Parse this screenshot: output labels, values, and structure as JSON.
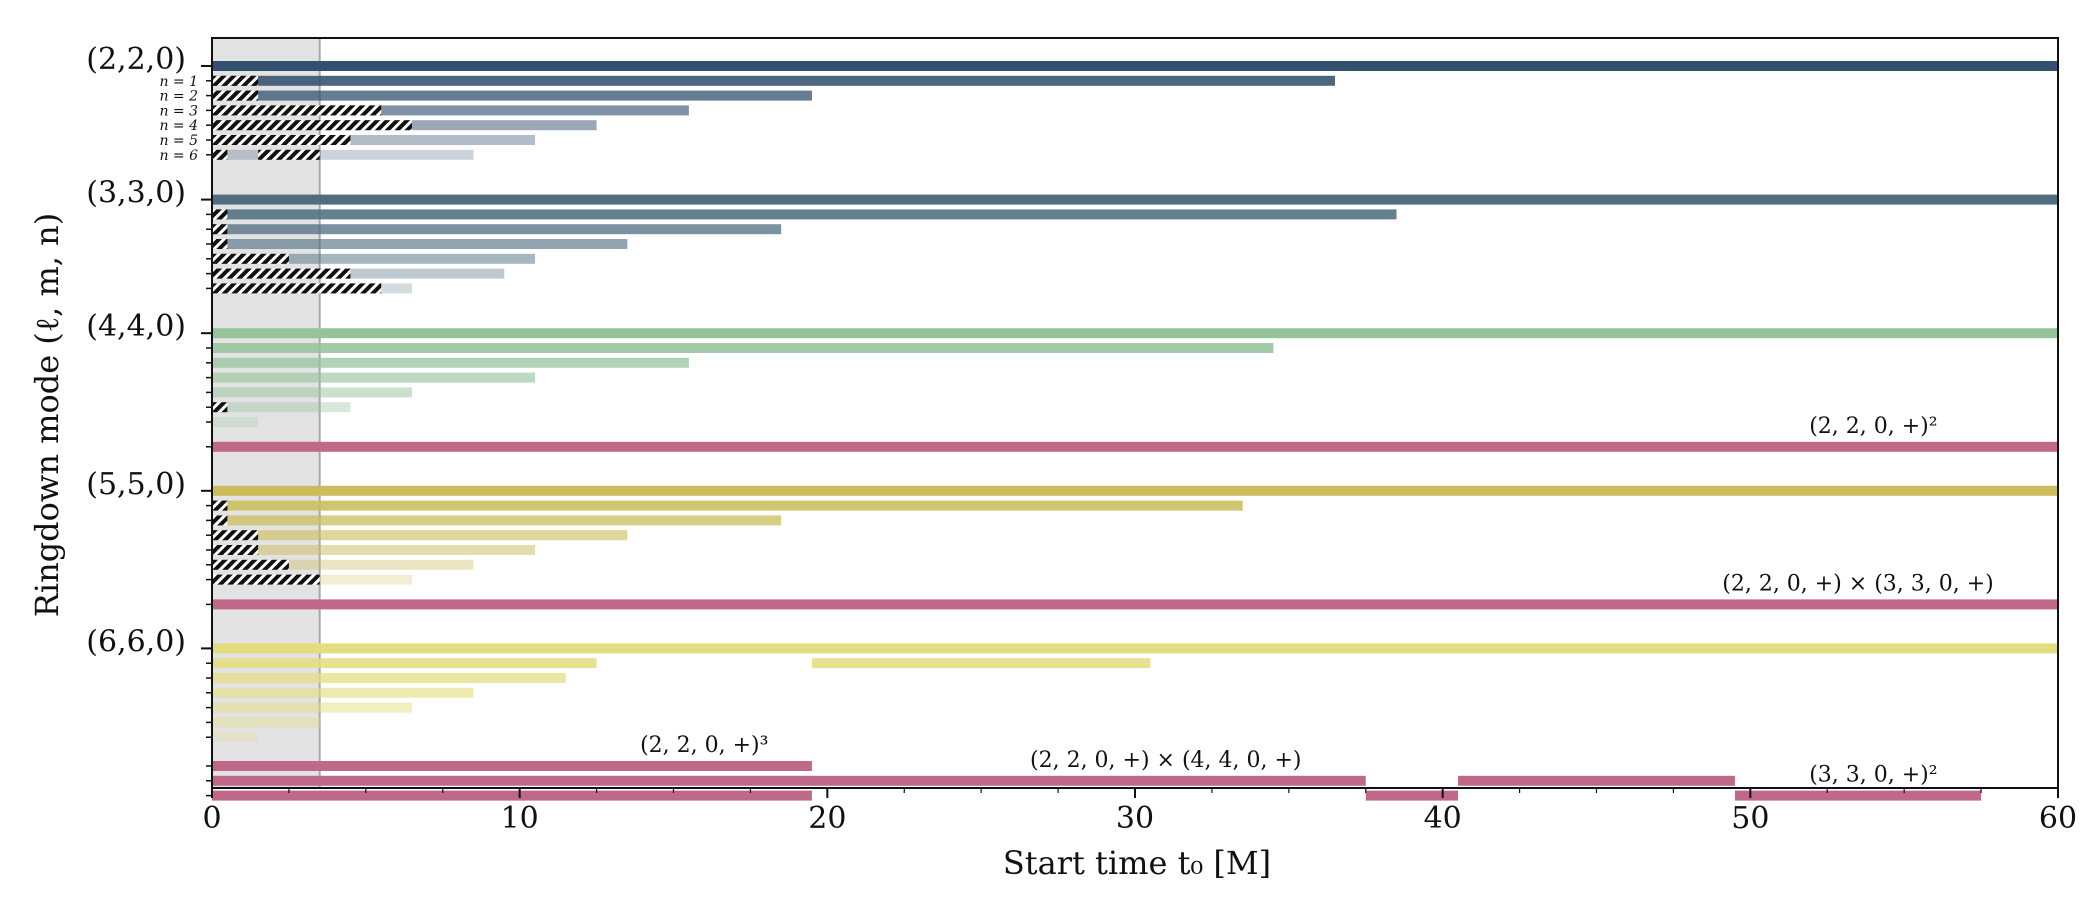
{
  "chart_data": {
    "type": "bar",
    "orientation": "horizontal",
    "xlabel": "Start time t₀ [M]",
    "ylabel": "Ringdown mode (ℓ, m, n)",
    "xlim": [
      0,
      60
    ],
    "x_ticks": [
      0,
      10,
      20,
      30,
      40,
      50,
      60
    ],
    "shaded_region": [
      0,
      3.5
    ],
    "groups": [
      {
        "label": "(2,2,0)",
        "color": "#33506e",
        "bars": [
          {
            "segments": [
              [
                0,
                60
              ]
            ],
            "hatch": []
          },
          {
            "n_label": "n = 1",
            "segments": [
              [
                0,
                36.5
              ]
            ],
            "hatch": [
              [
                0,
                1.5
              ]
            ]
          },
          {
            "n_label": "n = 2",
            "segments": [
              [
                0,
                19.5
              ]
            ],
            "hatch": [
              [
                0,
                1.5
              ]
            ]
          },
          {
            "n_label": "n = 3",
            "segments": [
              [
                0,
                15.5
              ]
            ],
            "hatch": [
              [
                0,
                5.5
              ]
            ]
          },
          {
            "n_label": "n = 4",
            "segments": [
              [
                0,
                12.5
              ]
            ],
            "hatch": [
              [
                0,
                6.5
              ]
            ]
          },
          {
            "n_label": "n = 5",
            "segments": [
              [
                0,
                10.5
              ]
            ],
            "hatch": [
              [
                0,
                4.5
              ]
            ]
          },
          {
            "n_label": "n = 6",
            "segments": [
              [
                0,
                8.5
              ]
            ],
            "hatch": [
              [
                0,
                0.5
              ],
              [
                1.5,
                3.5
              ]
            ]
          }
        ]
      },
      {
        "label": "(3,3,0)",
        "color": "#4f6f80",
        "bars": [
          {
            "segments": [
              [
                0,
                60
              ]
            ],
            "hatch": []
          },
          {
            "segments": [
              [
                0,
                38.5
              ]
            ],
            "hatch": [
              [
                0,
                0.5
              ]
            ]
          },
          {
            "segments": [
              [
                0,
                18.5
              ]
            ],
            "hatch": [
              [
                0,
                0.5
              ]
            ]
          },
          {
            "segments": [
              [
                0,
                13.5
              ]
            ],
            "hatch": [
              [
                0,
                0.5
              ]
            ]
          },
          {
            "segments": [
              [
                0,
                10.5
              ]
            ],
            "hatch": [
              [
                0,
                2.5
              ]
            ]
          },
          {
            "segments": [
              [
                0,
                9.5
              ]
            ],
            "hatch": [
              [
                0,
                4.5
              ]
            ]
          },
          {
            "segments": [
              [
                0,
                6.5
              ]
            ],
            "hatch": [
              [
                0,
                5.5
              ]
            ]
          }
        ]
      },
      {
        "label": "(4,4,0)",
        "color": "#95c49c",
        "bars": [
          {
            "segments": [
              [
                0,
                60
              ]
            ],
            "hatch": []
          },
          {
            "segments": [
              [
                0,
                34.5
              ]
            ],
            "hatch": []
          },
          {
            "segments": [
              [
                0,
                15.5
              ]
            ],
            "hatch": []
          },
          {
            "segments": [
              [
                0,
                10.5
              ]
            ],
            "hatch": []
          },
          {
            "segments": [
              [
                0,
                6.5
              ]
            ],
            "hatch": []
          },
          {
            "segments": [
              [
                0,
                4.5
              ]
            ],
            "hatch": [
              [
                0,
                0.5
              ]
            ]
          },
          {
            "segments": [
              [
                0,
                1.5
              ]
            ],
            "hatch": []
          }
        ]
      },
      {
        "label": "(5,5,0)",
        "color": "#cbbd5a",
        "bars": [
          {
            "segments": [
              [
                0,
                60
              ]
            ],
            "hatch": []
          },
          {
            "segments": [
              [
                0,
                33.5
              ]
            ],
            "hatch": [
              [
                0,
                0.5
              ]
            ]
          },
          {
            "segments": [
              [
                0,
                18.5
              ]
            ],
            "hatch": [
              [
                0,
                0.5
              ]
            ]
          },
          {
            "segments": [
              [
                0,
                13.5
              ]
            ],
            "hatch": [
              [
                0,
                1.5
              ]
            ]
          },
          {
            "segments": [
              [
                0,
                10.5
              ]
            ],
            "hatch": [
              [
                0,
                1.5
              ]
            ]
          },
          {
            "segments": [
              [
                0,
                8.5
              ]
            ],
            "hatch": [
              [
                0,
                2.5
              ]
            ]
          },
          {
            "segments": [
              [
                0,
                6.5
              ]
            ],
            "hatch": [
              [
                0,
                3.5
              ]
            ]
          }
        ]
      },
      {
        "label": "(6,6,0)",
        "color": "#e4dd80",
        "bars": [
          {
            "segments": [
              [
                0,
                60
              ]
            ],
            "hatch": []
          },
          {
            "segments": [
              [
                0,
                12.5
              ],
              [
                19.5,
                30.5
              ]
            ],
            "hatch": []
          },
          {
            "segments": [
              [
                0,
                11.5
              ]
            ],
            "hatch": []
          },
          {
            "segments": [
              [
                0,
                8.5
              ]
            ],
            "hatch": []
          },
          {
            "segments": [
              [
                0,
                6.5
              ]
            ],
            "hatch": []
          },
          {
            "segments": [
              [
                0,
                3.5
              ]
            ],
            "hatch": []
          },
          {
            "segments": [
              [
                0,
                1.5
              ]
            ],
            "hatch": []
          }
        ]
      }
    ],
    "quadratic_modes": [
      {
        "label": "(2, 2, 0, +)²",
        "segments": [
          [
            0,
            60
          ]
        ],
        "annot_x": 54
      },
      {
        "label": "(2, 2, 0, +) × (3, 3, 0, +)",
        "segments": [
          [
            0,
            60
          ]
        ],
        "annot_x": 53.5
      },
      {
        "label": "(2, 2, 0, +)³",
        "segments": [
          [
            0,
            19.5
          ]
        ],
        "annot_x": 16
      },
      {
        "label": "(2, 2, 0, +) × (4, 4, 0, +)",
        "segments": [
          [
            0,
            37.5
          ],
          [
            40.5,
            49.5
          ]
        ],
        "annot_x": 31
      },
      {
        "label": "(3, 3, 0, +)²",
        "segments": [
          [
            0,
            19.5
          ],
          [
            37.5,
            40.5
          ],
          [
            49.5,
            57.5
          ]
        ],
        "annot_x": 54
      }
    ],
    "quadratic_color": "#c0688a"
  }
}
